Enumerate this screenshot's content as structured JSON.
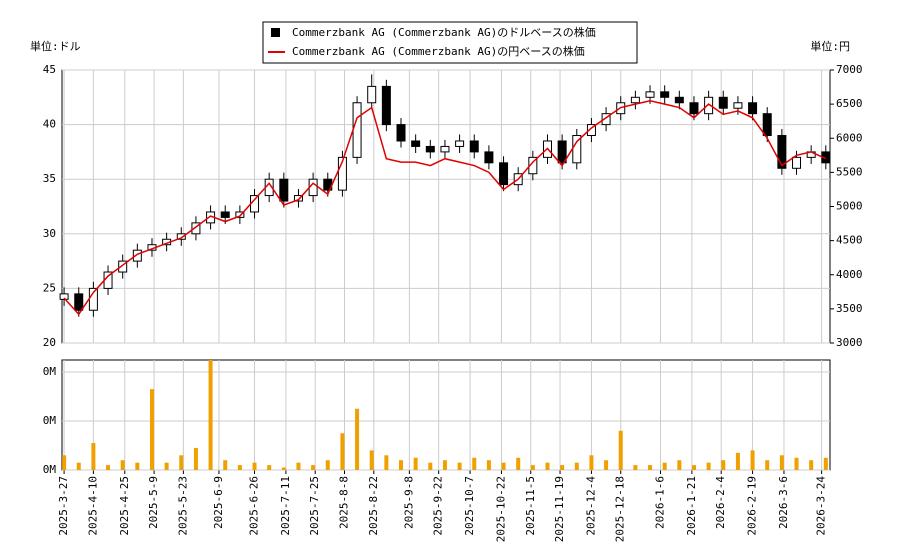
{
  "chart_data": {
    "type": "candlestick",
    "legend_position": "top",
    "candle_name": "Commerzbank AG (Commerzbank AG)のドルベースの株価",
    "candle_color": "#000000",
    "y_unit": "単位:ドル",
    "y2_unit": "単位:円",
    "x": [
      "2025-3-27",
      "2025-4-3",
      "2025-4-10",
      "2025-4-17",
      "2025-4-24",
      "2025-5-1",
      "2025-5-8",
      "2025-5-15",
      "2025-5-22",
      "2025-5-29",
      "2025-6-5",
      "2025-6-12",
      "2025-6-19",
      "2025-6-26",
      "2025-7-3",
      "2025-7-10",
      "2025-7-17",
      "2025-7-24",
      "2025-7-31",
      "2025-8-7",
      "2025-8-14",
      "2025-8-21",
      "2025-8-28",
      "2025-9-4",
      "2025-9-11",
      "2025-9-18",
      "2025-9-25",
      "2025-10-2",
      "2025-10-9",
      "2025-10-16",
      "2025-10-23",
      "2025-10-30",
      "2025-11-6",
      "2025-11-13",
      "2025-11-20",
      "2025-11-27",
      "2025-12-4",
      "2025-12-11",
      "2025-12-18",
      "2025-12-25",
      "2026-1-1",
      "2026-1-8",
      "2026-1-15",
      "2026-1-22",
      "2026-1-29",
      "2026-2-5",
      "2026-2-12",
      "2026-2-19",
      "2026-2-26",
      "2026-3-5",
      "2026-3-12",
      "2026-3-19",
      "2026-3-26"
    ],
    "open": [
      24,
      24.5,
      23,
      25,
      26.5,
      27.5,
      28.5,
      29,
      29.5,
      30,
      31,
      32,
      31.5,
      32,
      33.5,
      35,
      33,
      33.5,
      35,
      34,
      37,
      42,
      43.5,
      40,
      38.5,
      38,
      37.5,
      38,
      38.5,
      37.5,
      36.5,
      34.5,
      35.5,
      37,
      38.5,
      36.5,
      39,
      40,
      41,
      42,
      42.5,
      43,
      42.5,
      42,
      41,
      42.5,
      41.5,
      42,
      41,
      39,
      36,
      37,
      37.5
    ],
    "high": [
      25.1,
      25.1,
      25.6,
      27.1,
      28.1,
      29.1,
      29.6,
      30.1,
      30.6,
      31.6,
      32.6,
      32.6,
      32.6,
      34.1,
      35.6,
      35.6,
      34.1,
      35.6,
      35.6,
      37.6,
      42.6,
      44.6,
      44.1,
      40.6,
      39.1,
      38.6,
      38.6,
      39.1,
      39.1,
      38.1,
      37.1,
      36.1,
      37.6,
      39.1,
      39.1,
      39.6,
      40.6,
      41.6,
      42.6,
      43.1,
      43.6,
      43.6,
      43.1,
      42.6,
      43.1,
      43.1,
      42.6,
      42.6,
      41.6,
      39.6,
      37.6,
      38.1,
      38.1
    ],
    "low": [
      23.4,
      22.4,
      22.4,
      24.4,
      25.9,
      26.9,
      27.9,
      28.4,
      28.9,
      29.4,
      30.4,
      30.9,
      30.9,
      31.4,
      32.9,
      32.4,
      32.4,
      32.9,
      33.4,
      33.4,
      36.4,
      41.4,
      39.4,
      37.9,
      37.4,
      36.9,
      36.9,
      37.4,
      36.9,
      35.9,
      33.9,
      33.9,
      34.9,
      36.4,
      35.9,
      35.9,
      38.4,
      39.4,
      40.4,
      41.4,
      41.9,
      41.9,
      41.4,
      40.4,
      40.4,
      40.9,
      40.9,
      40.4,
      38.4,
      35.4,
      35.4,
      36.4,
      35.9
    ],
    "close": [
      24.5,
      23,
      25,
      26.5,
      27.5,
      28.5,
      29,
      29.5,
      30,
      31,
      32,
      31.5,
      32,
      33.5,
      35,
      33,
      33.5,
      35,
      34,
      37,
      42,
      43.5,
      40,
      38.5,
      38,
      37.5,
      38,
      38.5,
      37.5,
      36.5,
      34.5,
      35.5,
      37,
      38.5,
      36.5,
      39,
      40,
      41,
      42,
      42.5,
      43,
      42.5,
      42,
      41,
      42.5,
      41.5,
      42,
      41,
      39,
      36,
      37,
      37.5,
      36.5
    ],
    "series": [
      {
        "name": "Commerzbank AG (Commerzbank AG)の円ベースの株価",
        "color": "#e00000",
        "axis": "y2",
        "values": [
          3660,
          3420,
          3740,
          3980,
          4140,
          4300,
          4380,
          4460,
          4540,
          4700,
          4860,
          4780,
          4860,
          5100,
          5340,
          5020,
          5100,
          5340,
          5180,
          5660,
          6300,
          6450,
          5700,
          5650,
          5650,
          5600,
          5700,
          5650,
          5600,
          5500,
          5250,
          5400,
          5650,
          5850,
          5600,
          5950,
          6150,
          6300,
          6450,
          6500,
          6550,
          6500,
          6450,
          6300,
          6500,
          6350,
          6400,
          6300,
          6000,
          5600,
          5750,
          5800,
          5700
        ]
      }
    ],
    "ylim": [
      20,
      45
    ],
    "yticks": [
      20,
      25,
      30,
      35,
      40,
      45
    ],
    "y2lim": [
      3000,
      7000
    ],
    "y2ticks": [
      3000,
      3500,
      4000,
      4500,
      5000,
      5500,
      6000,
      6500,
      7000
    ],
    "xlim": [
      "2025-3-26",
      "2026-3-28"
    ],
    "xticks": [
      "2025-3-27",
      "2025-4-10",
      "2025-4-25",
      "2025-5-9",
      "2025-5-23",
      "2025-6-9",
      "2025-6-26",
      "2025-7-11",
      "2025-7-25",
      "2025-8-8",
      "2025-8-22",
      "2025-9-8",
      "2025-9-22",
      "2025-10-7",
      "2025-10-22",
      "2025-11-5",
      "2025-11-19",
      "2025-12-4",
      "2025-12-18",
      "2026-1-6",
      "2026-1-21",
      "2026-2-4",
      "2026-2-19",
      "2026-3-6",
      "2026-3-24"
    ],
    "volume": [
      60000,
      30000,
      110000,
      20000,
      40000,
      30000,
      330000,
      30000,
      60000,
      90000,
      449000,
      40000,
      20000,
      30000,
      20000,
      10000,
      30000,
      20000,
      40000,
      150000,
      250000,
      80000,
      60000,
      40000,
      50000,
      30000,
      40000,
      30000,
      50000,
      40000,
      30000,
      50000,
      20000,
      30000,
      20000,
      30000,
      60000,
      40000,
      160000,
      20000,
      20000,
      30000,
      40000,
      20000,
      30000,
      40000,
      70000,
      80000,
      40000,
      60000,
      50000,
      40000,
      50000
    ],
    "volume_color": "#f0a000",
    "volume_ylim": [
      0,
      449000
    ],
    "volume_yticks": [
      {
        "value": 0,
        "label": "0M"
      },
      {
        "value": 200000,
        "label": "0M"
      },
      {
        "value": 400000,
        "label": "0M"
      }
    ],
    "grid": true
  }
}
